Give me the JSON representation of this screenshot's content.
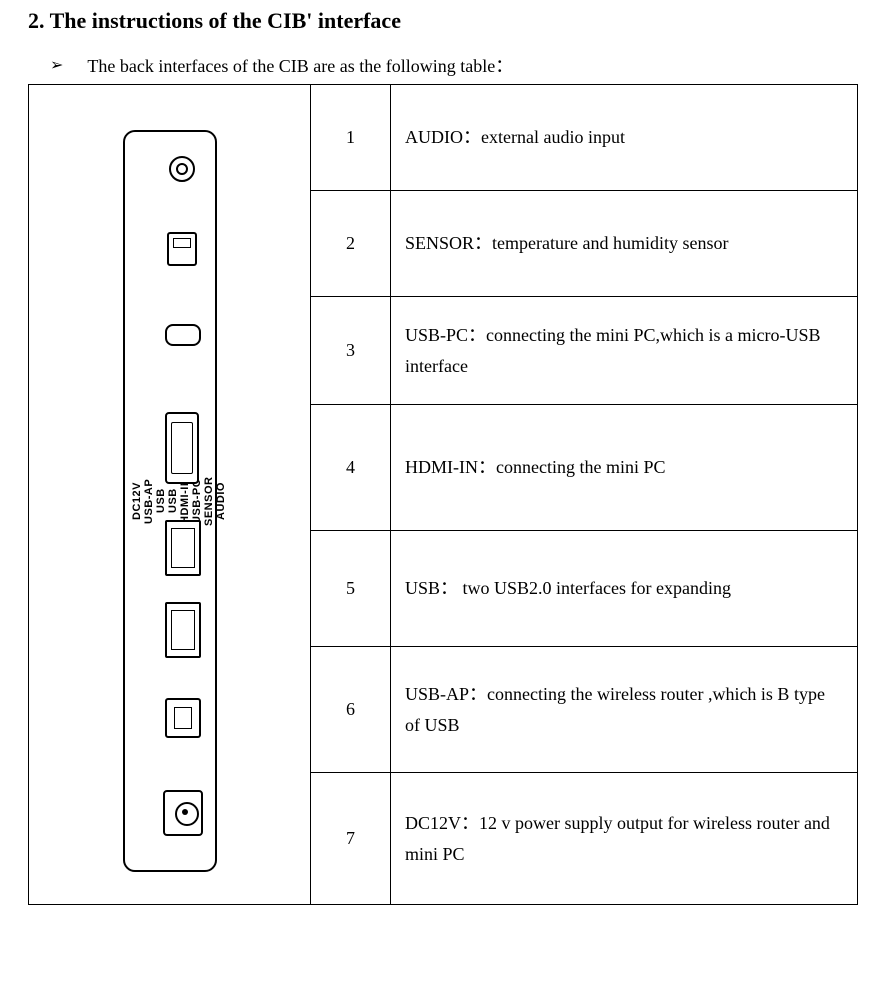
{
  "heading": "2. The instructions of the CIB' interface",
  "bullet": {
    "text": "The back interfaces of the CIB are as the following table："
  },
  "panel_labels": [
    "AUDIO",
    "SENSOR",
    "USB-PC",
    "HDMI-IN",
    "USB",
    "USB",
    "USB-AP",
    "DC12V"
  ],
  "rows": [
    {
      "num": "1",
      "desc": "AUDIO：external audio input"
    },
    {
      "num": "2",
      "desc": "SENSOR：temperature and humidity sensor"
    },
    {
      "num": "3",
      "desc": "USB-PC：connecting the mini PC,which is a micro-USB interface"
    },
    {
      "num": "4",
      "desc": "HDMI-IN：connecting the mini PC"
    },
    {
      "num": "5",
      "desc": "USB：  two USB2.0 interfaces for expanding"
    },
    {
      "num": "6",
      "desc": "USB-AP：connecting the wireless router ,which is   B type of USB"
    },
    {
      "num": "7",
      "desc": "DC12V：12 v power supply output for wireless router and mini PC"
    }
  ],
  "table_style": {
    "border_color": "#000000",
    "background_color": "#ffffff",
    "font_size": 18,
    "image_col_width": 282,
    "num_col_width": 80
  }
}
